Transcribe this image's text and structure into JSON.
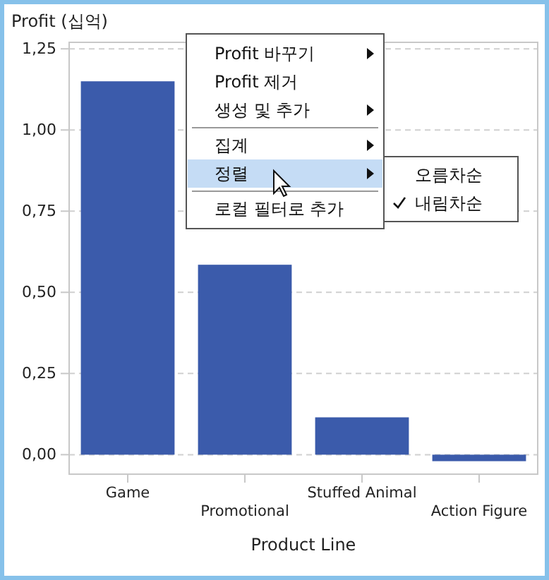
{
  "chart_data": {
    "type": "bar",
    "ylabel": "Profit (십억)",
    "xlabel": "Product Line",
    "categories": [
      "Game",
      "Promotional",
      "Stuffed Animal",
      "Action Figure"
    ],
    "values": [
      1.15,
      0.585,
      0.115,
      -0.02
    ],
    "color": "#3b5bab",
    "ylim": [
      -0.06,
      1.27
    ],
    "yticks": [
      {
        "value": 0,
        "label": "0,00"
      },
      {
        "value": 0.25,
        "label": "0,25"
      },
      {
        "value": 0.5,
        "label": "0,50"
      },
      {
        "value": 0.75,
        "label": "0,75"
      },
      {
        "value": 1,
        "label": "1,00"
      },
      {
        "value": 1.25,
        "label": "1,25"
      }
    ],
    "grid": "y",
    "annotations": [
      "Profit 바꾸기",
      "Profit 제거",
      "생성 및 추가",
      "집계",
      "정렬",
      "로컬 필터로 추가",
      "오름차순",
      "내림차순"
    ]
  }
}
